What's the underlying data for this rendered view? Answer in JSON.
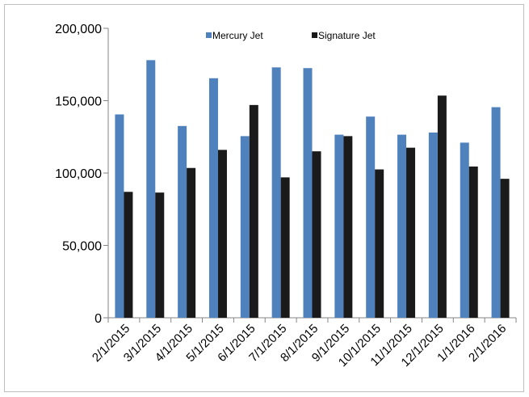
{
  "chart_data": {
    "type": "bar",
    "title": "",
    "xlabel": "",
    "ylabel": "",
    "ylim": [
      0,
      200000
    ],
    "yticks": [
      0,
      50000,
      100000,
      150000,
      200000
    ],
    "ytick_labels": [
      "0",
      "50,000",
      "100,000",
      "150,000",
      "200,000"
    ],
    "grid": false,
    "legend_position": "top",
    "categories": [
      "2/1/2015",
      "3/1/2015",
      "4/1/2015",
      "5/1/2015",
      "6/1/2015",
      "7/1/2015",
      "8/1/2015",
      "9/1/2015",
      "10/1/2015",
      "11/1/2015",
      "12/1/2015",
      "1/1/2016",
      "2/1/2016"
    ],
    "series": [
      {
        "name": "Mercury Jet",
        "color": "#4f81bd",
        "values": [
          140500,
          178000,
          132500,
          165500,
          125500,
          173000,
          172500,
          126500,
          139000,
          126500,
          128000,
          121000,
          145500
        ]
      },
      {
        "name": "Signature Jet",
        "color": "#1a1a1a",
        "values": [
          87000,
          86500,
          103500,
          116000,
          147000,
          97000,
          115000,
          125500,
          102500,
          117500,
          153500,
          104500,
          96000
        ]
      }
    ]
  }
}
